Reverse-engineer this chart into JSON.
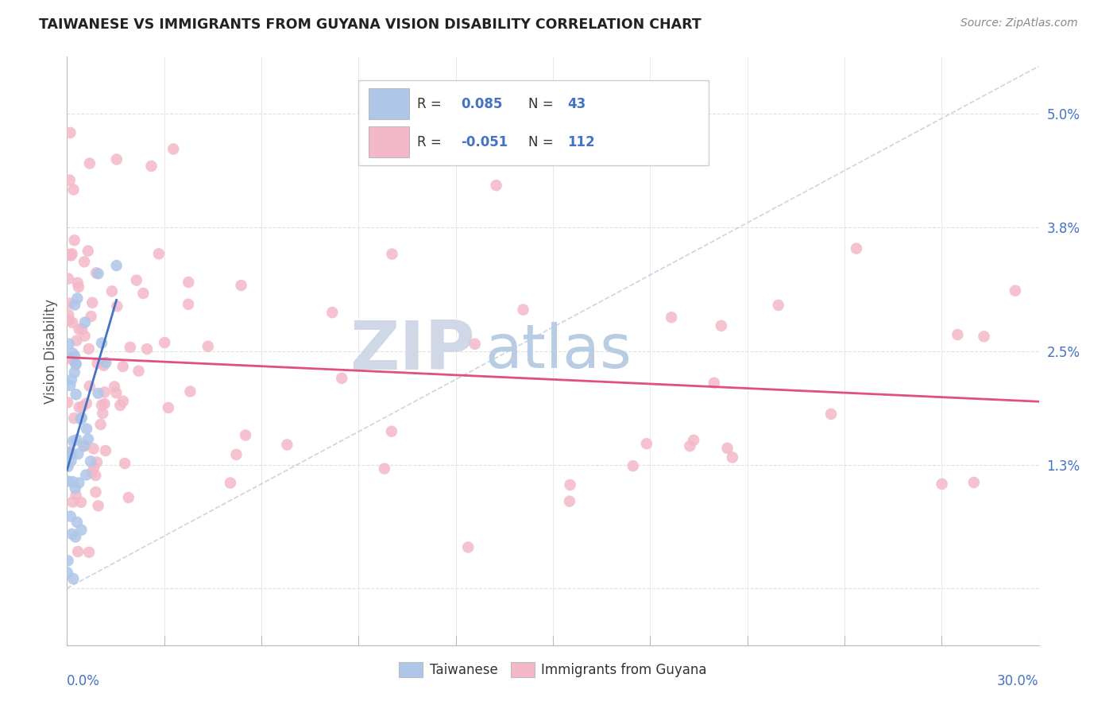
{
  "title": "TAIWANESE VS IMMIGRANTS FROM GUYANA VISION DISABILITY CORRELATION CHART",
  "source": "Source: ZipAtlas.com",
  "ylabel": "Vision Disability",
  "yticks": [
    0.0,
    0.013,
    0.025,
    0.038,
    0.05
  ],
  "ytick_labels": [
    "",
    "1.3%",
    "2.5%",
    "3.8%",
    "5.0%"
  ],
  "xmin": 0.0,
  "xmax": 0.3,
  "ymin": -0.006,
  "ymax": 0.056,
  "series": [
    {
      "name": "Taiwanese",
      "R": 0.085,
      "N": 43,
      "color": "#aec6e8",
      "line_color": "#4472c4"
    },
    {
      "name": "Immigrants from Guyana",
      "R": -0.051,
      "N": 112,
      "color": "#f4b8c8",
      "line_color": "#e05080"
    }
  ],
  "watermark_zip": "ZIP",
  "watermark_atlas": "atlas",
  "watermark_zip_color": "#d0d8e8",
  "watermark_atlas_color": "#b8cce4",
  "background_color": "#ffffff",
  "grid_color": "#e0e0e0",
  "title_color": "#222222",
  "axis_label_color": "#4472c4",
  "legend_R_color": "#4472c4",
  "dashed_line_color": "#b8cce0"
}
